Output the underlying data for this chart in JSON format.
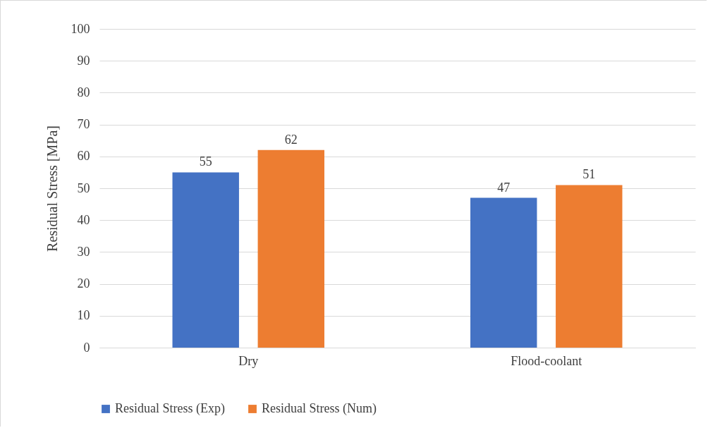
{
  "chart_data": {
    "type": "bar",
    "ylabel": "Residual Stress [MPa]",
    "categories": [
      "Dry",
      "Flood-coolant"
    ],
    "series": [
      {
        "name": "Residual Stress (Exp)",
        "color": "#4472c4",
        "values": [
          55,
          47
        ]
      },
      {
        "name": "Residual Stress (Num)",
        "color": "#ed7d31",
        "values": [
          62,
          51
        ]
      }
    ],
    "ylim": [
      0,
      100
    ],
    "yticks": [
      0,
      10,
      20,
      30,
      40,
      50,
      60,
      70,
      80,
      90,
      100
    ],
    "grid": "y",
    "legend": "bottom",
    "data_labels": true
  }
}
